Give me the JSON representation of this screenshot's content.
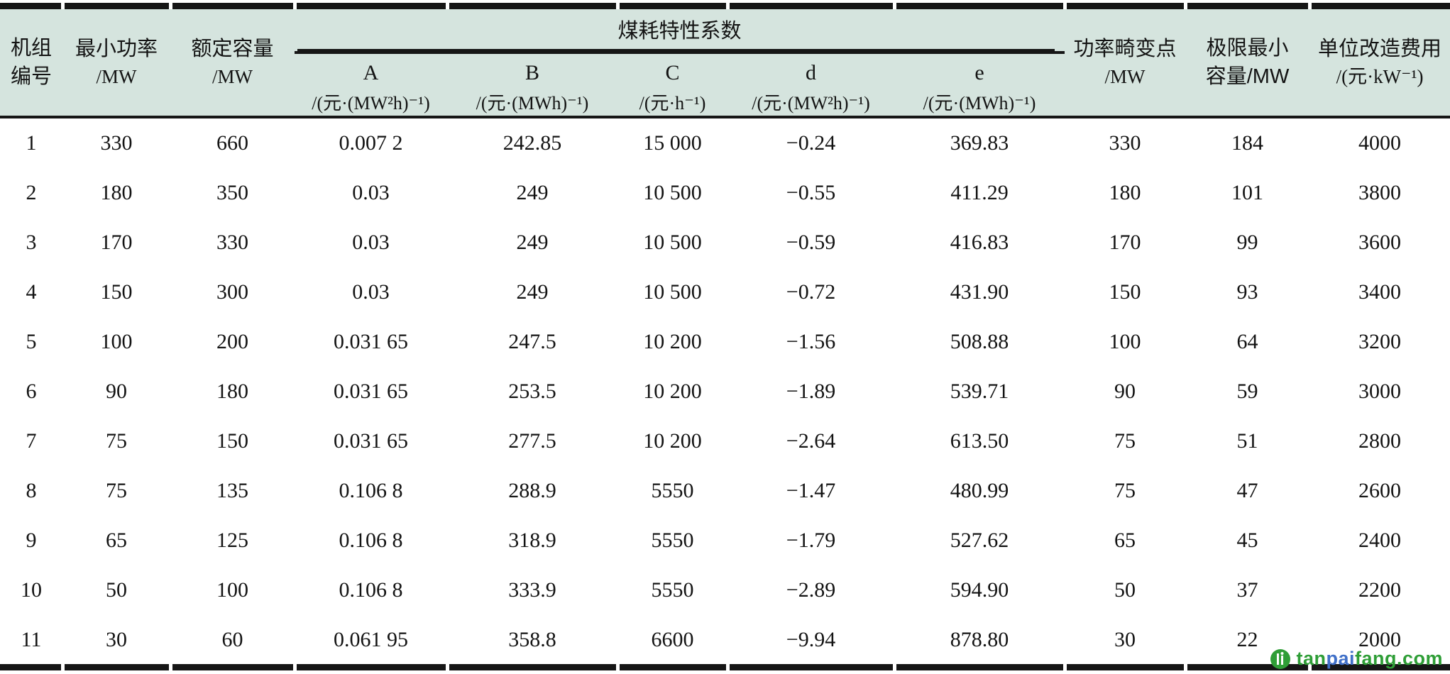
{
  "table": {
    "columns": {
      "unit_id": {
        "line1": "机组",
        "line2": "编号"
      },
      "min_power": {
        "line1": "最小功率",
        "line2": "/MW"
      },
      "rated_capacity": {
        "line1": "额定容量",
        "line2": "/MW"
      },
      "coal_group": {
        "label": "煤耗特性系数",
        "subcols": [
          {
            "letter": "A",
            "unit": "/(元·(MW²h)⁻¹)"
          },
          {
            "letter": "B",
            "unit": "/(元·(MWh)⁻¹)"
          },
          {
            "letter": "C",
            "unit": "/(元·h⁻¹)"
          },
          {
            "letter": "d",
            "unit": "/(元·(MW²h)⁻¹)"
          },
          {
            "letter": "e",
            "unit": "/(元·(MWh)⁻¹)"
          }
        ]
      },
      "distortion_point": {
        "line1": "功率畸变点",
        "line2": "/MW"
      },
      "limit_min_capacity": {
        "line1": "极限最小",
        "line2": "容量/MW"
      },
      "retrofit_cost": {
        "line1": "单位改造费用",
        "line2": "/(元·kW⁻¹)"
      }
    },
    "rows": [
      [
        "1",
        "330",
        "660",
        "0.007 2",
        "242.85",
        "15 000",
        "−0.24",
        "369.83",
        "330",
        "184",
        "4000"
      ],
      [
        "2",
        "180",
        "350",
        "0.03",
        "249",
        "10 500",
        "−0.55",
        "411.29",
        "180",
        "101",
        "3800"
      ],
      [
        "3",
        "170",
        "330",
        "0.03",
        "249",
        "10 500",
        "−0.59",
        "416.83",
        "170",
        "99",
        "3600"
      ],
      [
        "4",
        "150",
        "300",
        "0.03",
        "249",
        "10 500",
        "−0.72",
        "431.90",
        "150",
        "93",
        "3400"
      ],
      [
        "5",
        "100",
        "200",
        "0.031 65",
        "247.5",
        "10 200",
        "−1.56",
        "508.88",
        "100",
        "64",
        "3200"
      ],
      [
        "6",
        "90",
        "180",
        "0.031 65",
        "253.5",
        "10 200",
        "−1.89",
        "539.71",
        "90",
        "59",
        "3000"
      ],
      [
        "7",
        "75",
        "150",
        "0.031 65",
        "277.5",
        "10 200",
        "−2.64",
        "613.50",
        "75",
        "51",
        "2800"
      ],
      [
        "8",
        "75",
        "135",
        "0.106 8",
        "288.9",
        "5550",
        "−1.47",
        "480.99",
        "75",
        "47",
        "2600"
      ],
      [
        "9",
        "65",
        "125",
        "0.106 8",
        "318.9",
        "5550",
        "−1.79",
        "527.62",
        "65",
        "45",
        "2400"
      ],
      [
        "10",
        "50",
        "100",
        "0.106 8",
        "333.9",
        "5550",
        "−2.89",
        "594.90",
        "50",
        "37",
        "2200"
      ],
      [
        "11",
        "30",
        "60",
        "0.061 95",
        "358.8",
        "6600",
        "−9.94",
        "878.80",
        "30",
        "22",
        "2000"
      ]
    ]
  },
  "watermark": {
    "site": "tanpaifang.com",
    "segments": [
      {
        "text": "tan",
        "color": "#2f9e37"
      },
      {
        "text": "pai",
        "color": "#4070c8"
      },
      {
        "text": "fang",
        "color": "#2f9e37"
      },
      {
        "text": ".com",
        "color": "#2f9e37"
      }
    ],
    "icon_color": "#2f9e37"
  }
}
